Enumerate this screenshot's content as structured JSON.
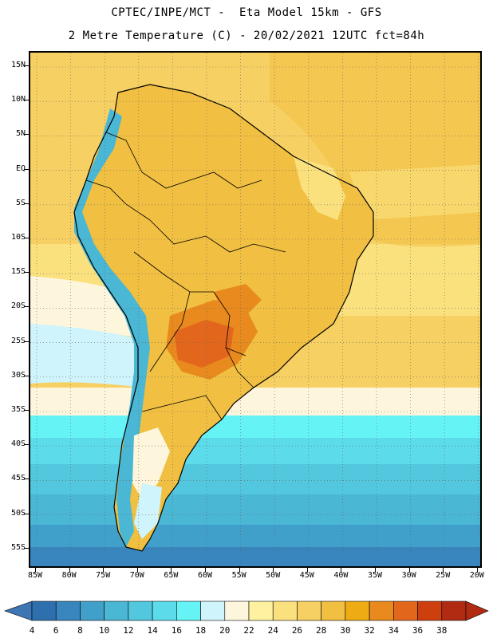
{
  "header": {
    "title_line1": "CPTEC/INPE/MCT -  Eta Model 15km - GFS",
    "title_line2": "2 Metre Temperature (C) - 20/02/2021 12UTC fct=84h"
  },
  "map": {
    "region": "South America",
    "variable": "2 Metre Temperature",
    "units": "C",
    "lat_labels": [
      "15N",
      "10N",
      "5N",
      "EQ",
      "5S",
      "10S",
      "15S",
      "20S",
      "25S",
      "30S",
      "35S",
      "40S",
      "45S",
      "50S",
      "55S"
    ],
    "lon_labels": [
      "85W",
      "80W",
      "75W",
      "70W",
      "65W",
      "60W",
      "55W",
      "50W",
      "45W",
      "40W",
      "35W",
      "30W",
      "25W",
      "20W"
    ]
  },
  "colorbar": {
    "labels": [
      "4",
      "6",
      "8",
      "10",
      "12",
      "14",
      "16",
      "18",
      "20",
      "22",
      "24",
      "26",
      "28",
      "30",
      "32",
      "34",
      "36",
      "38"
    ],
    "colors": [
      "#2e6fae",
      "#3886bd",
      "#41a0c9",
      "#4ab7d4",
      "#52c7de",
      "#5cdcea",
      "#66f3f6",
      "#cff4fb",
      "#fdf6dc",
      "#fef2a0",
      "#fbe17e",
      "#f7d063",
      "#f1bf41",
      "#eeab13",
      "#e88a1e",
      "#e2671c",
      "#ce3f0e",
      "#b02b12"
    ],
    "under_color": "#3e76b4",
    "over_color": "#b02b12"
  }
}
